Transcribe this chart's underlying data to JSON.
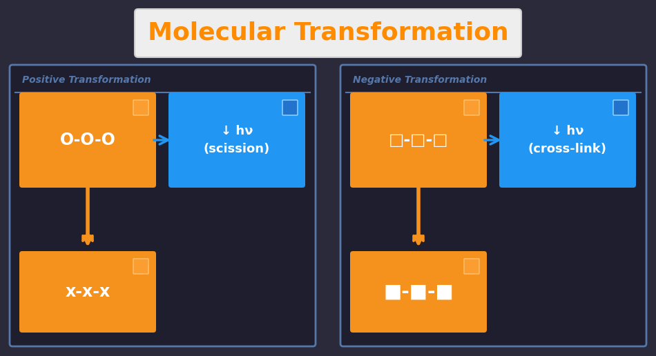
{
  "title": "Molecular Transformation",
  "title_color": "#FF8C00",
  "title_bg": "#EEEEEE",
  "bg_color": "#2a2a3a",
  "orange": "#F5921E",
  "blue": "#2196F3",
  "white": "#FFFFFF",
  "panel_border": "#5577aa",
  "panel_bg": "#1e1e2e",
  "positive_label": "Positive Transformation",
  "negative_label": "Negative Transformation",
  "positive_top_text": "O-O-O",
  "positive_bottom_text": "x-x-x",
  "negative_top_text": "□-□-□",
  "negative_bottom_text": "■-■-■",
  "positive_note": "↓ hν\n(scission)",
  "negative_note": "↓ hν\n(cross-link)",
  "figw": 9.5,
  "figh": 5.16,
  "dpi": 100
}
